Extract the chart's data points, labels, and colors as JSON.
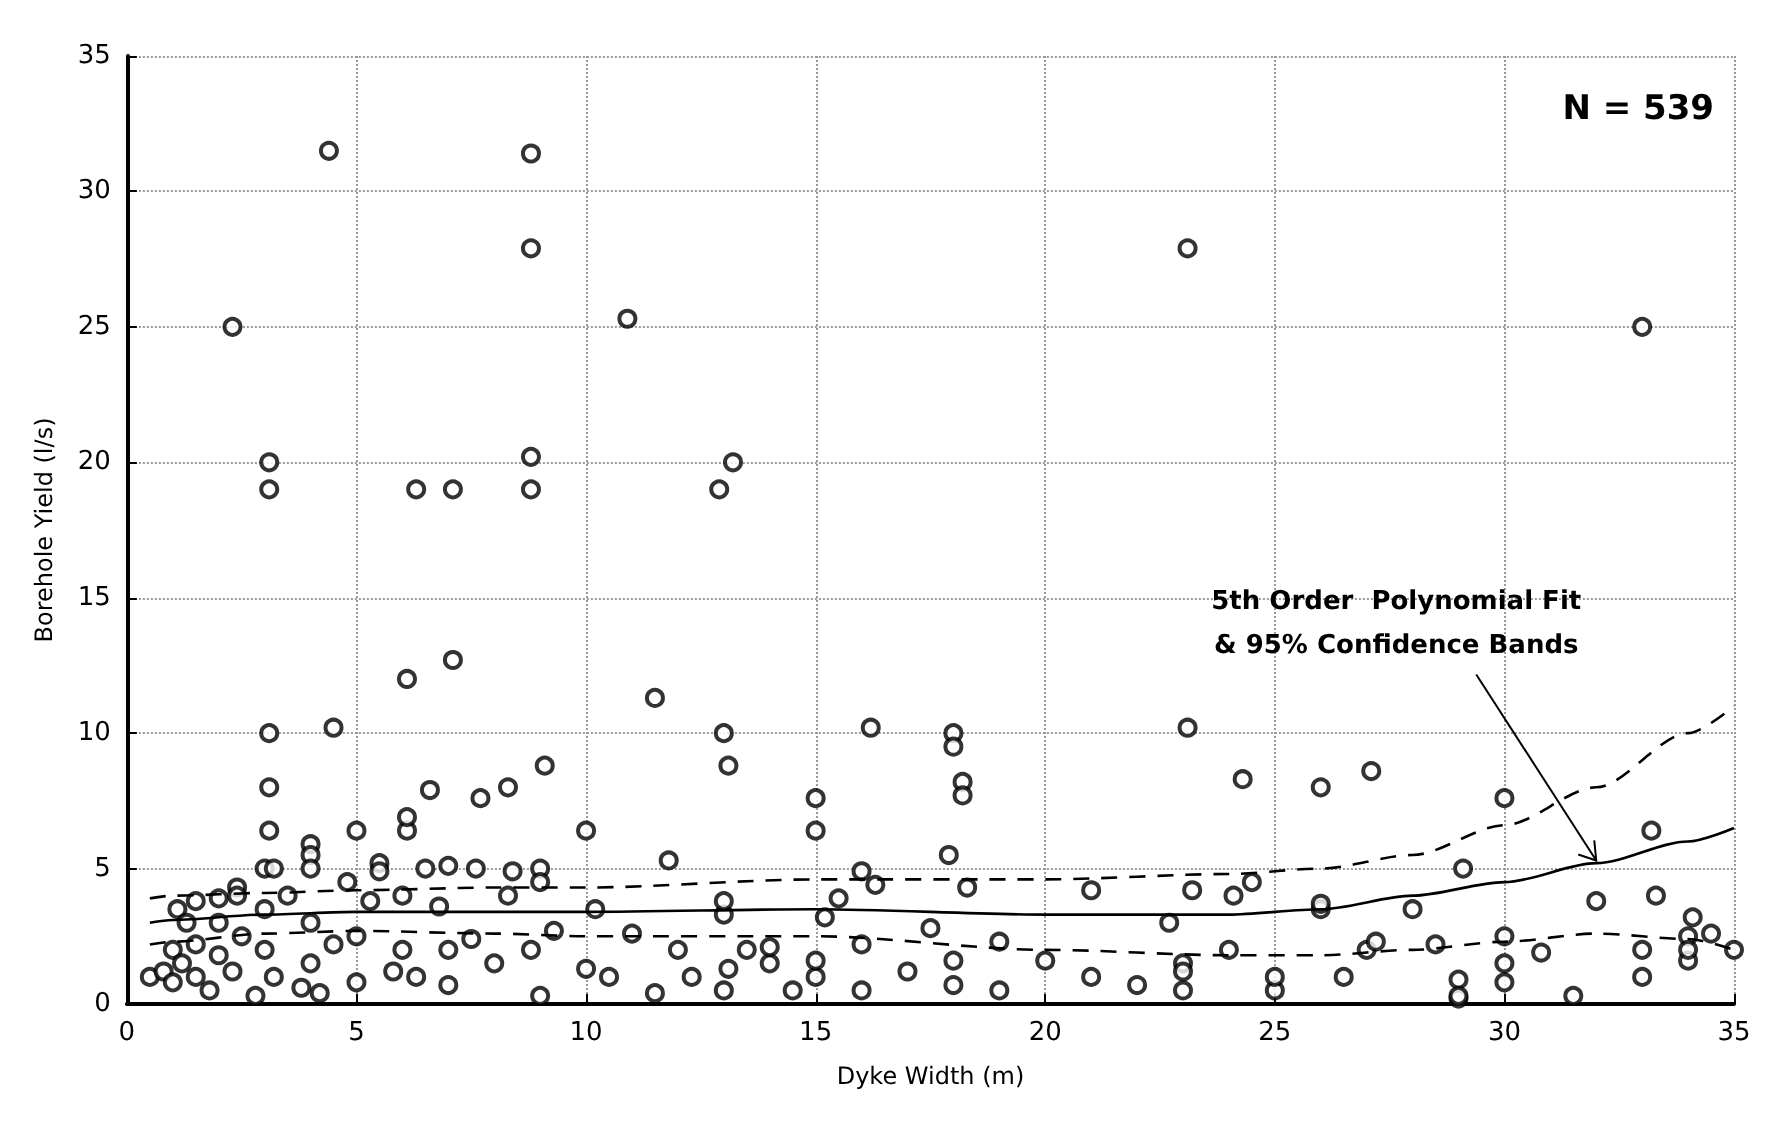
{
  "chart_data": {
    "type": "scatter",
    "xlabel": "Dyke Width (m)",
    "ylabel": "Borehole Yield (l/s)",
    "xlim": [
      0,
      35
    ],
    "ylim": [
      0,
      35
    ],
    "xticks": [
      0,
      5,
      10,
      15,
      20,
      25,
      30,
      35
    ],
    "yticks": [
      0,
      5,
      10,
      15,
      20,
      25,
      30,
      35
    ],
    "grid": true,
    "annotations": [
      "N = 539",
      {
        "text": "5th Order  Polynomial Fit\n& 95% Confidence Bands",
        "x": 32,
        "y": 5.3
      }
    ],
    "series": [
      {
        "color": "#000000",
        "marker": "circle",
        "x": [
          2.3,
          3.1,
          3.1,
          4.4,
          8.8,
          8.8,
          8.8,
          8.8,
          6.3,
          7.1,
          10.9,
          12.9,
          13.2,
          23.1,
          33,
          6.1,
          7.1,
          11.5,
          3.1,
          4.5,
          13,
          16.2,
          18,
          18,
          18.2,
          18.2,
          23.1,
          13.1,
          9.1,
          6.6,
          7.7,
          8.3,
          3.1,
          15,
          15,
          26,
          27.1,
          30,
          33.2,
          3.1,
          6.1,
          6.1,
          10,
          5,
          4,
          4,
          4,
          5.5,
          5.5,
          6.5,
          7,
          7.6,
          8.4,
          9,
          9,
          3,
          3.2,
          2.4,
          2.4,
          1.5,
          1.1,
          1.3,
          2,
          0.5,
          0.8,
          1,
          1,
          1.2,
          1.5,
          1.5,
          1.8,
          2,
          2,
          2.3,
          2.5,
          2.8,
          3,
          3,
          3.2,
          3.5,
          3.8,
          4,
          4,
          4.2,
          4.5,
          4.8,
          5,
          5,
          5.3,
          5.8,
          6,
          6,
          6.3,
          6.8,
          7,
          7,
          7.5,
          8,
          8.3,
          8.8,
          9,
          9.3,
          10,
          10.2,
          10.5,
          11,
          11.5,
          12,
          12.3,
          13,
          13,
          13.5,
          14,
          14.5,
          15,
          15,
          15.2,
          15.5,
          16,
          16,
          16.3,
          17,
          17.5,
          18,
          18,
          19,
          19,
          20,
          21,
          21,
          22,
          23,
          23,
          23,
          24,
          24.5,
          25,
          25,
          26,
          26.5,
          27,
          28,
          29,
          29,
          29,
          30,
          30,
          30,
          32,
          33,
          33,
          34,
          34,
          34.5,
          35,
          11.8,
          13.1,
          13,
          14,
          16,
          17.9,
          18.3,
          22.7,
          23.2,
          26,
          28.5,
          29.1,
          34.1,
          34,
          27.2,
          24.3,
          24.1,
          30.8,
          31.5,
          33.3
        ],
        "values": [
          25,
          20,
          19,
          31.5,
          31.4,
          27.9,
          20.2,
          19,
          19,
          19,
          25.3,
          19,
          20,
          27.9,
          25,
          12,
          12.7,
          11.3,
          10,
          10.2,
          10,
          10.2,
          10,
          9.5,
          8.2,
          7.7,
          10.2,
          8.8,
          8.8,
          7.9,
          7.6,
          8,
          8,
          7.6,
          6.4,
          8,
          8.6,
          7.6,
          6.4,
          6.4,
          6.4,
          6.9,
          6.4,
          6.4,
          5.9,
          5.5,
          5,
          5.2,
          4.9,
          5,
          5.1,
          5,
          4.9,
          5,
          4.5,
          5,
          5,
          4.3,
          4,
          3.8,
          3.5,
          3,
          3.9,
          1,
          1.2,
          2,
          0.8,
          1.5,
          2.2,
          1,
          0.5,
          1.8,
          3,
          1.2,
          2.5,
          0.3,
          2,
          3.5,
          1,
          4,
          0.6,
          3,
          1.5,
          0.4,
          2.2,
          4.5,
          2.5,
          0.8,
          3.8,
          1.2,
          2,
          4,
          1,
          3.6,
          2,
          0.7,
          2.4,
          1.5,
          4,
          2,
          0.3,
          2.7,
          1.3,
          3.5,
          1,
          2.6,
          0.4,
          2,
          1,
          3.3,
          0.5,
          2,
          1.5,
          0.5,
          1,
          1.6,
          3.2,
          3.9,
          2.2,
          0.5,
          4.4,
          1.2,
          2.8,
          1.6,
          0.7,
          2.3,
          0.5,
          1.6,
          4.2,
          1,
          0.7,
          1.5,
          0.5,
          1.2,
          2,
          4.5,
          0.5,
          1,
          3.5,
          1,
          2,
          3.5,
          0.2,
          0.9,
          0.3,
          2.5,
          1.5,
          0.8,
          3.8,
          1,
          2,
          1.6,
          2.5,
          2.6,
          2,
          5.3,
          1.3,
          3.8,
          2.1,
          4.9,
          5.5,
          4.3,
          3,
          4.2,
          3.7,
          2.2,
          5,
          3.2,
          2,
          2.3,
          8.3,
          4,
          1.9,
          0.3,
          4
        ]
      },
      {
        "type": "line",
        "line_style": "solid",
        "marker": "none",
        "color": "#000000",
        "x": [
          0.5,
          1,
          3,
          5,
          8,
          10,
          15,
          20,
          24,
          26,
          28,
          30,
          32,
          34,
          35
        ],
        "values": [
          3,
          3.1,
          3.3,
          3.4,
          3.4,
          3.4,
          3.5,
          3.3,
          3.3,
          3.5,
          4,
          4.5,
          5.2,
          6,
          6.5
        ]
      },
      {
        "type": "line",
        "line_style": "dashed",
        "marker": "none",
        "color": "#000000",
        "x": [
          0.5,
          1,
          3,
          5,
          8,
          10,
          15,
          20,
          24,
          26,
          28,
          30,
          32,
          34,
          35
        ],
        "values": [
          2.2,
          2.3,
          2.6,
          2.7,
          2.6,
          2.5,
          2.5,
          2,
          1.8,
          1.8,
          2,
          2.3,
          2.6,
          2.4,
          2
        ]
      },
      {
        "type": "line",
        "line_style": "dashed",
        "marker": "none",
        "color": "#000000",
        "x": [
          0.5,
          1,
          3,
          5,
          8,
          10,
          15,
          20,
          24,
          26,
          28,
          30,
          32,
          34,
          35
        ],
        "values": [
          3.9,
          4,
          4.1,
          4.2,
          4.3,
          4.3,
          4.6,
          4.6,
          4.8,
          5,
          5.5,
          6.6,
          8,
          10,
          11
        ]
      }
    ]
  }
}
